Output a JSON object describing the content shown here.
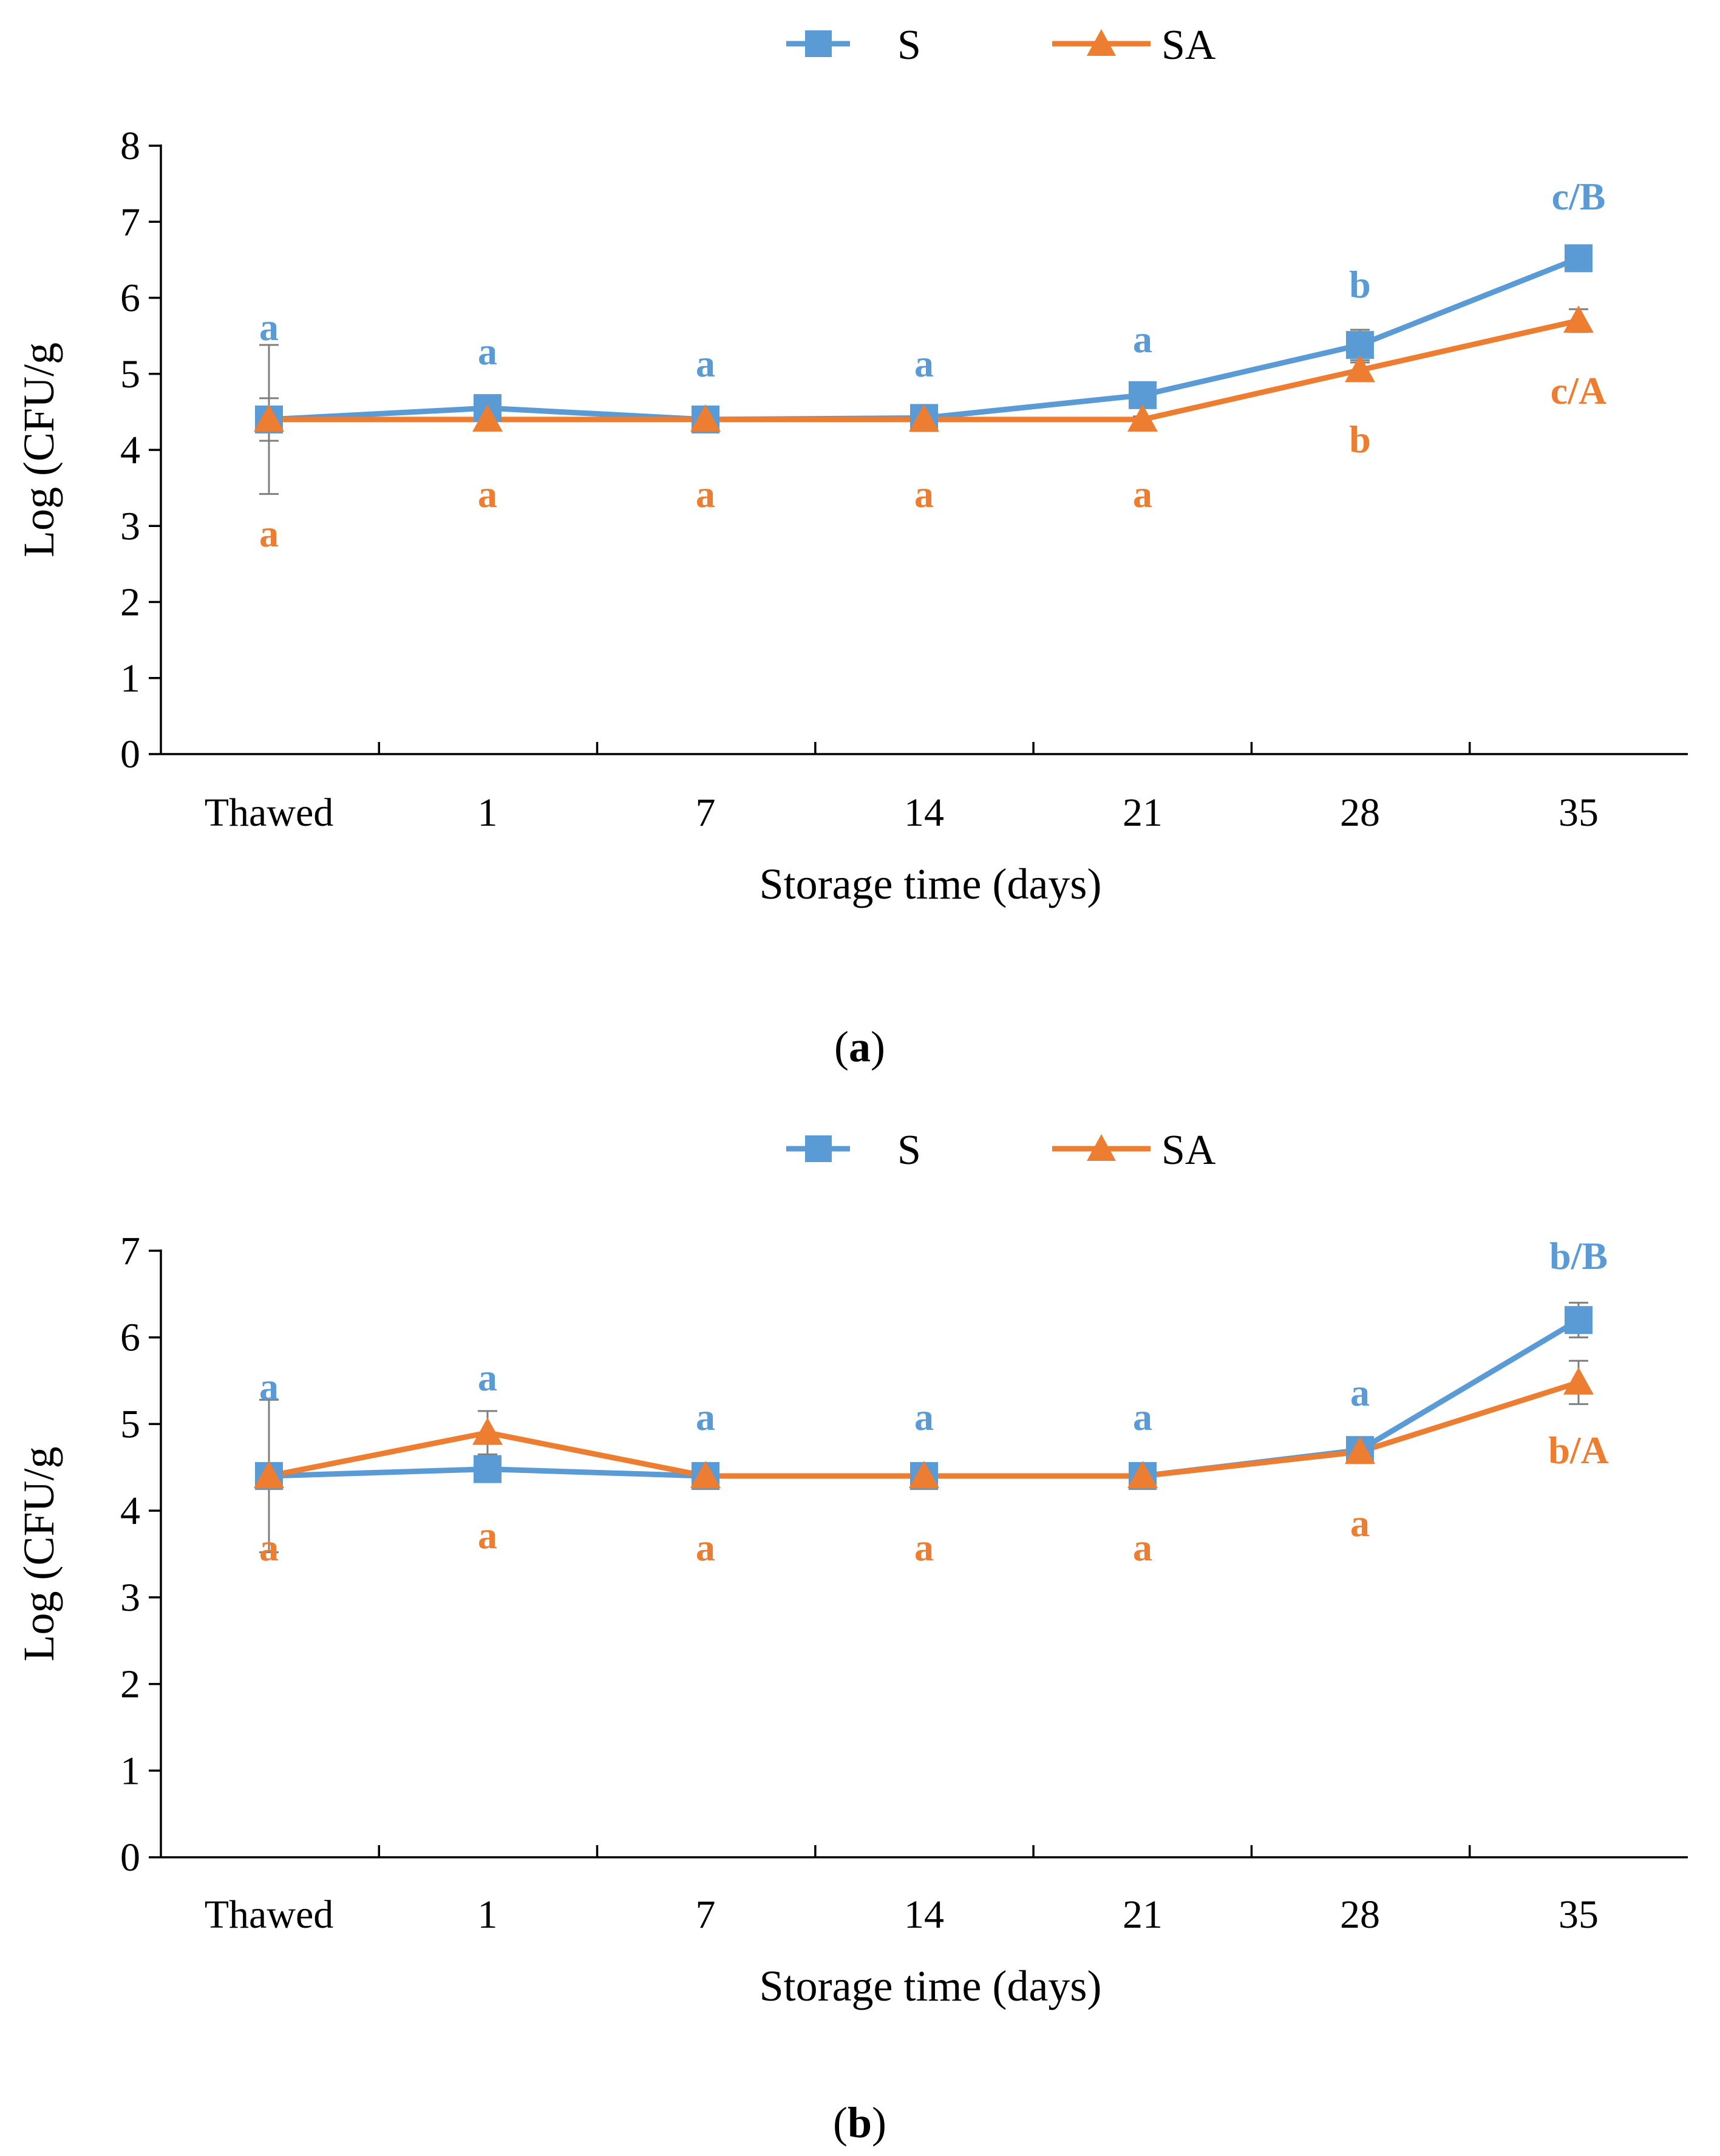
{
  "colors": {
    "S": "#5B9BD5",
    "SA": "#ED7D31",
    "error": "#7f7f7f"
  },
  "chart_data": [
    {
      "type": "line",
      "panel_label": "a",
      "categories": [
        "Thawed",
        "1",
        "7",
        "14",
        "21",
        "28",
        "35"
      ],
      "xlabel": "Storage time (days)",
      "ylabel": "Log (CFU/g",
      "ylim": [
        0,
        8
      ],
      "yticks": [
        "0",
        "1",
        "2",
        "3",
        "4",
        "5",
        "6",
        "7",
        "8"
      ],
      "legend": [
        "S",
        "SA"
      ],
      "legend_position": "top-center",
      "series": [
        {
          "name": "S",
          "values": [
            4.4,
            4.55,
            4.4,
            4.42,
            4.72,
            5.38,
            6.52
          ],
          "error": [
            0.28,
            0.05,
            0.04,
            0.04,
            0.06,
            0.2,
            0.1
          ],
          "letters": [
            "a",
            "a",
            "a",
            "a",
            "a",
            "b",
            "c/B"
          ]
        },
        {
          "name": "SA",
          "values": [
            4.4,
            4.4,
            4.4,
            4.4,
            4.4,
            5.05,
            5.7
          ],
          "error": [
            0.98,
            0.04,
            0.04,
            0.04,
            0.04,
            0.1,
            0.15
          ],
          "letters": [
            "a",
            "a",
            "a",
            "a",
            "a",
            "b",
            "c/A"
          ]
        }
      ]
    },
    {
      "type": "line",
      "panel_label": "b",
      "categories": [
        "Thawed",
        "1",
        "7",
        "14",
        "21",
        "28",
        "35"
      ],
      "xlabel": "Storage time (days)",
      "ylabel": "Log (CFU/g",
      "ylim": [
        0,
        7
      ],
      "yticks": [
        "0",
        "1",
        "2",
        "3",
        "4",
        "5",
        "6",
        "7"
      ],
      "legend": [
        "S",
        "SA"
      ],
      "legend_position": "top-center",
      "series": [
        {
          "name": "S",
          "values": [
            4.4,
            4.48,
            4.4,
            4.4,
            4.4,
            4.7,
            6.2
          ],
          "error": [
            0.1,
            0.05,
            0.04,
            0.04,
            0.04,
            0.05,
            0.2
          ],
          "letters": [
            "a",
            "a",
            "a",
            "a",
            "a",
            "a",
            "b/B"
          ]
        },
        {
          "name": "SA",
          "values": [
            4.4,
            4.9,
            4.4,
            4.4,
            4.4,
            4.68,
            5.48
          ],
          "error": [
            0.88,
            0.25,
            0.04,
            0.04,
            0.04,
            0.05,
            0.25
          ],
          "letters": [
            "a",
            "a",
            "a",
            "a",
            "a",
            "a",
            "b/A"
          ]
        }
      ]
    }
  ]
}
